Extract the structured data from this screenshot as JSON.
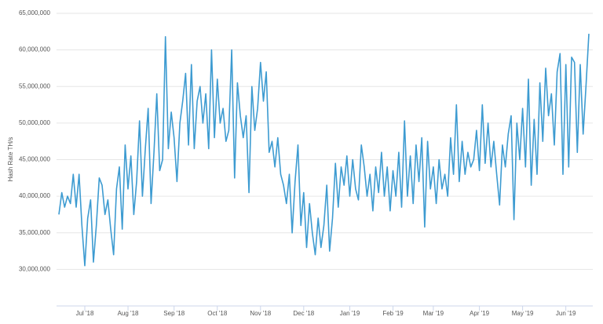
{
  "chart_data": {
    "type": "line",
    "y_label": "Hash Rate TH/s",
    "categories": [
      null,
      null,
      null,
      null,
      null,
      null,
      null,
      null,
      null,
      "Jul '18",
      null,
      null,
      null,
      null,
      null,
      null,
      null,
      null,
      null,
      null,
      null,
      null,
      null,
      null,
      "Aug '18",
      null,
      null,
      null,
      null,
      null,
      null,
      null,
      null,
      null,
      null,
      null,
      null,
      null,
      null,
      null,
      "Sep '18",
      null,
      null,
      null,
      null,
      null,
      null,
      null,
      null,
      null,
      null,
      null,
      null,
      null,
      null,
      "Oct '18",
      null,
      null,
      null,
      null,
      null,
      null,
      null,
      null,
      null,
      null,
      null,
      null,
      null,
      null,
      "Nov '18",
      null,
      null,
      null,
      null,
      null,
      null,
      null,
      null,
      null,
      null,
      null,
      null,
      null,
      null,
      "Dec '18",
      null,
      null,
      null,
      null,
      null,
      null,
      null,
      null,
      null,
      null,
      null,
      null,
      null,
      null,
      null,
      "Jan '19",
      null,
      null,
      null,
      null,
      null,
      null,
      null,
      null,
      null,
      null,
      null,
      null,
      null,
      null,
      "Feb '19",
      null,
      null,
      null,
      null,
      null,
      null,
      null,
      null,
      null,
      null,
      null,
      null,
      null,
      "Mar '19",
      null,
      null,
      null,
      null,
      null,
      null,
      null,
      null,
      null,
      null,
      null,
      null,
      null,
      null,
      null,
      "Apr '19",
      null,
      null,
      null,
      null,
      null,
      null,
      null,
      null,
      null,
      null,
      null,
      null,
      null,
      null,
      "May '19",
      null,
      null,
      null,
      null,
      null,
      null,
      null,
      null,
      null,
      null,
      null,
      null,
      null,
      null,
      "Jun '19",
      null,
      null,
      null,
      null,
      null,
      null,
      null,
      null
    ],
    "series": [
      {
        "name": "Hash Rate",
        "color": "#3d9bd1",
        "values": [
          37500000,
          40500000,
          38500000,
          40000000,
          39000000,
          43000000,
          38500000,
          43000000,
          36000000,
          30500000,
          37000000,
          39500000,
          31000000,
          36000000,
          42500000,
          41500000,
          37500000,
          39500000,
          35500000,
          32000000,
          41000000,
          44000000,
          35500000,
          47000000,
          41000000,
          45500000,
          37500000,
          42000000,
          50300000,
          40000000,
          46500000,
          52000000,
          39000000,
          46000000,
          54000000,
          43500000,
          45000000,
          61800000,
          46500000,
          51500000,
          48000000,
          42000000,
          50000000,
          53000000,
          56800000,
          47000000,
          58000000,
          46500000,
          53000000,
          55000000,
          50000000,
          54000000,
          46500000,
          60000000,
          48000000,
          56000000,
          50000000,
          52000000,
          47500000,
          49000000,
          60000000,
          42500000,
          55500000,
          51000000,
          48000000,
          51000000,
          40500000,
          55000000,
          49000000,
          52000000,
          58300000,
          53000000,
          57000000,
          46000000,
          47500000,
          44000000,
          48000000,
          43000000,
          41500000,
          39000000,
          43000000,
          35000000,
          42000000,
          47000000,
          36000000,
          40500000,
          33000000,
          39000000,
          35000000,
          32000000,
          37000000,
          33000000,
          36000000,
          41500000,
          32500000,
          37000000,
          44500000,
          38500000,
          44000000,
          41500000,
          45500000,
          40000000,
          45000000,
          41000000,
          39500000,
          47000000,
          44000000,
          40000000,
          43000000,
          38000000,
          44000000,
          40500000,
          46000000,
          40000000,
          44000000,
          38000000,
          43500000,
          40000000,
          46000000,
          38500000,
          50300000,
          40000000,
          45500000,
          39000000,
          47000000,
          42000000,
          48000000,
          35800000,
          47500000,
          41000000,
          44000000,
          39000000,
          45000000,
          41000000,
          43000000,
          40000000,
          48000000,
          43000000,
          52500000,
          42000000,
          47500000,
          43000000,
          46000000,
          44000000,
          45000000,
          49000000,
          43500000,
          52500000,
          44500000,
          50000000,
          44000000,
          47500000,
          43000000,
          38800000,
          47000000,
          44000000,
          48500000,
          51000000,
          36800000,
          50000000,
          45000000,
          52000000,
          44000000,
          56000000,
          41500000,
          50500000,
          43000000,
          55500000,
          47500000,
          57500000,
          51000000,
          54000000,
          47000000,
          57000000,
          59500000,
          43000000,
          58000000,
          44000000,
          59000000,
          58300000,
          46000000,
          58000000,
          48500000,
          55000000,
          62200000
        ]
      }
    ],
    "ylim": [
      25000000,
      65000000
    ],
    "yticks": [
      {
        "value": 30000000,
        "label": "30,000,000"
      },
      {
        "value": 35000000,
        "label": "35,000,000"
      },
      {
        "value": 40000000,
        "label": "40,000,000"
      },
      {
        "value": 45000000,
        "label": "45,000,000"
      },
      {
        "value": 50000000,
        "label": "50,000,000"
      },
      {
        "value": 55000000,
        "label": "55,000,000"
      },
      {
        "value": 60000000,
        "label": "60,000,000"
      },
      {
        "value": 65000000,
        "label": "65,000,000"
      }
    ],
    "grid": true
  }
}
